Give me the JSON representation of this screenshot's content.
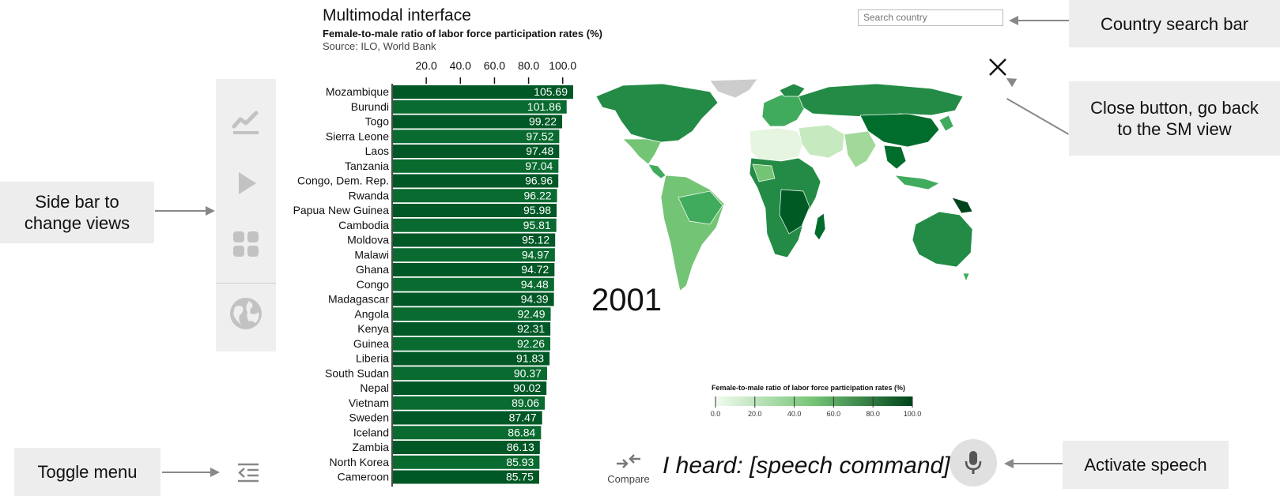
{
  "header": {
    "title": "Multimodal interface",
    "subtitle": "Female-to-male ratio of labor force participation rates (%)",
    "source": "Source: ILO, World Bank"
  },
  "search": {
    "placeholder": "Search country"
  },
  "sidebar": {
    "items": [
      {
        "name": "line-chart",
        "icon": "line-chart-icon"
      },
      {
        "name": "play",
        "icon": "play-icon"
      },
      {
        "name": "grid",
        "icon": "grid-icon"
      },
      {
        "name": "globe",
        "icon": "globe-icon"
      }
    ]
  },
  "callouts": {
    "search": "Country search bar",
    "close_line1": "Close button, go back",
    "close_line2": "to the SM view",
    "sidebar_line1": "Side bar to",
    "sidebar_line2": "change views",
    "toggle": "Toggle menu",
    "speech": "Activate speech"
  },
  "map": {
    "year": "2001"
  },
  "legend": {
    "title": "Female-to-male ratio of labor force participation rates (%)",
    "ticks": [
      "0.0",
      "20.0",
      "40.0",
      "60.0",
      "80.0",
      "100.0"
    ],
    "color_low": "#f2fbef",
    "color_high": "#00441b"
  },
  "controls": {
    "compare_label": "Compare",
    "heard": "I heard: [speech command]"
  },
  "colors": {
    "bar": "#0a6b30",
    "bar_dark": "#005826",
    "panel": "#efefef",
    "callout": "#ededed"
  },
  "chart_data": {
    "type": "bar",
    "orientation": "horizontal",
    "title": "Female-to-male ratio of labor force participation rates (%)",
    "x_ticks": [
      "20.0",
      "40.0",
      "60.0",
      "80.0",
      "100.0"
    ],
    "xlim": [
      0,
      105.69
    ],
    "categories": [
      "Mozambique",
      "Burundi",
      "Togo",
      "Sierra Leone",
      "Laos",
      "Tanzania",
      "Congo, Dem. Rep.",
      "Rwanda",
      "Papua New Guinea",
      "Cambodia",
      "Moldova",
      "Malawi",
      "Ghana",
      "Congo",
      "Madagascar",
      "Angola",
      "Kenya",
      "Guinea",
      "Liberia",
      "South Sudan",
      "Nepal",
      "Vietnam",
      "Sweden",
      "Iceland",
      "Zambia",
      "North Korea",
      "Cameroon"
    ],
    "values": [
      105.69,
      101.86,
      99.22,
      97.52,
      97.48,
      97.04,
      96.96,
      96.22,
      95.98,
      95.81,
      95.12,
      94.97,
      94.72,
      94.48,
      94.39,
      92.49,
      92.31,
      92.26,
      91.83,
      90.37,
      90.02,
      89.06,
      87.47,
      86.84,
      86.13,
      85.93,
      85.75
    ],
    "labels": [
      "105.69",
      "101.86",
      "99.22",
      "97.52",
      "97.48",
      "97.04",
      "96.96",
      "96.22",
      "95.98",
      "95.81",
      "95.12",
      "94.97",
      "94.72",
      "94.48",
      "94.39",
      "92.49",
      "92.31",
      "92.26",
      "91.83",
      "90.37",
      "90.02",
      "89.06",
      "87.47",
      "86.84",
      "86.13",
      "85.93",
      "85.75"
    ]
  }
}
